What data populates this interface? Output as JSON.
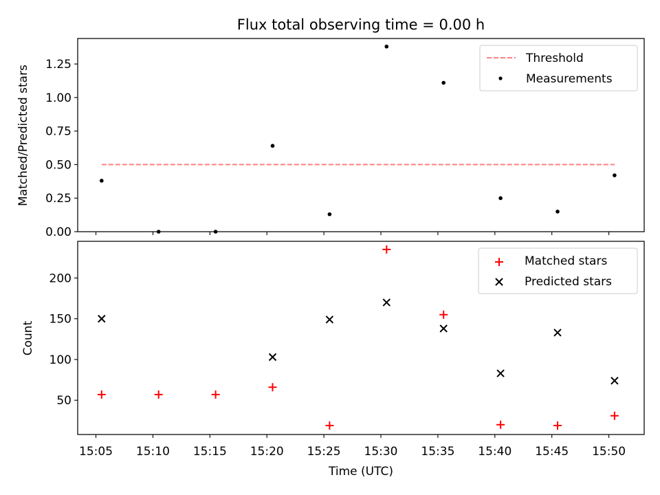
{
  "chart_data": [
    {
      "type": "scatter",
      "title": "Flux total observing time = 0.00 h",
      "xlabel": "",
      "ylabel": "Matched/Predicted stars",
      "ylim": [
        0,
        1.44
      ],
      "yticks": [
        "0.00",
        "0.25",
        "0.50",
        "0.75",
        "1.00",
        "1.25"
      ],
      "ytick_values": [
        0,
        0.25,
        0.5,
        0.75,
        1.0,
        1.25
      ],
      "xticklabels_shown": false,
      "legend_placement": "top-right",
      "series": [
        {
          "name": "Threshold",
          "kind": "line",
          "style": "dashed",
          "color": "#ff7f7f",
          "points": [
            [
              "15:05",
              0.5
            ],
            [
              "15:50",
              0.5
            ]
          ]
        },
        {
          "name": "Measurements",
          "kind": "scatter",
          "marker": "dot",
          "color": "#000000",
          "points": [
            [
              "15:05",
              0.38
            ],
            [
              "15:10",
              0.0
            ],
            [
              "15:15",
              0.0
            ],
            [
              "15:20",
              0.64
            ],
            [
              "15:25",
              0.13
            ],
            [
              "15:30",
              1.38
            ],
            [
              "15:35",
              1.11
            ],
            [
              "15:40",
              0.25
            ],
            [
              "15:45",
              0.15
            ],
            [
              "15:50",
              0.42
            ]
          ]
        }
      ]
    },
    {
      "type": "scatter",
      "title": "",
      "xlabel": "Time (UTC)",
      "ylabel": "Count",
      "ylim": [
        8,
        245
      ],
      "yticks": [
        "50",
        "100",
        "150",
        "200"
      ],
      "ytick_values": [
        50,
        100,
        150,
        200
      ],
      "xticks": [
        "15:05",
        "15:10",
        "15:15",
        "15:20",
        "15:25",
        "15:30",
        "15:35",
        "15:40",
        "15:45",
        "15:50"
      ],
      "legend_placement": "top-right",
      "series": [
        {
          "name": "Matched stars",
          "kind": "scatter",
          "marker": "plus",
          "color": "#ff0000",
          "points": [
            [
              "15:05",
              57
            ],
            [
              "15:10",
              57
            ],
            [
              "15:15",
              57
            ],
            [
              "15:20",
              66
            ],
            [
              "15:25",
              19
            ],
            [
              "15:30",
              235
            ],
            [
              "15:35",
              155
            ],
            [
              "15:40",
              20
            ],
            [
              "15:45",
              19
            ],
            [
              "15:50",
              31
            ]
          ]
        },
        {
          "name": "Predicted stars",
          "kind": "scatter",
          "marker": "x",
          "color": "#000000",
          "points": [
            [
              "15:05",
              150
            ],
            [
              "15:10",
              null
            ],
            [
              "15:15",
              null
            ],
            [
              "15:20",
              103
            ],
            [
              "15:25",
              149
            ],
            [
              "15:30",
              170
            ],
            [
              "15:35",
              138
            ],
            [
              "15:40",
              83
            ],
            [
              "15:45",
              133
            ],
            [
              "15:50",
              74
            ]
          ]
        }
      ]
    }
  ]
}
